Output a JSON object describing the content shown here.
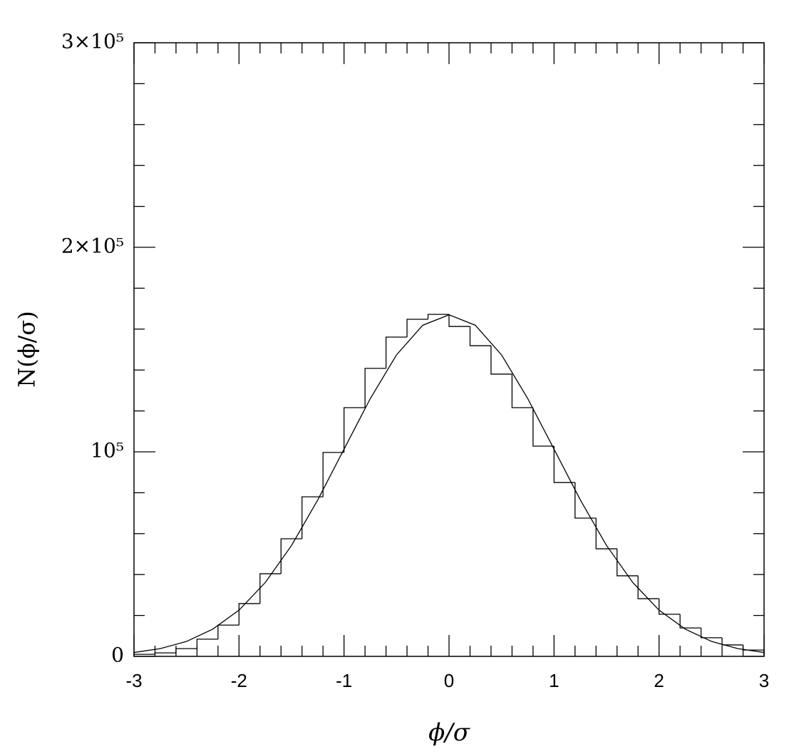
{
  "chart_data": {
    "type": "histogram",
    "xlabel": "ϕ/σ",
    "ylabel": "N(ϕ/σ)",
    "bins": [
      -3,
      -2.8,
      -2.6,
      -2.4,
      -2.2,
      -2,
      -1.8,
      -1.6,
      -1.4,
      -1.2,
      -1,
      -0.8,
      -0.6,
      -0.4,
      -0.2,
      0,
      0.2,
      0.4,
      0.6,
      0.8,
      1,
      1.2,
      1.4,
      1.6,
      1.8,
      2,
      2.2,
      2.4,
      2.6,
      2.8,
      3
    ],
    "values": [
      1000,
      1700,
      3800,
      8400,
      15300,
      25800,
      40400,
      57500,
      78000,
      99700,
      121600,
      140800,
      156100,
      164800,
      167200,
      161300,
      151900,
      138000,
      121600,
      102800,
      85000,
      67600,
      52600,
      39400,
      28200,
      20600,
      13900,
      9100,
      5600,
      3100
    ],
    "color": "#000000",
    "curve": {
      "x": [
        -3,
        -2.75,
        -2.5,
        -2.25,
        -2,
        -1.75,
        -1.5,
        -1.25,
        -1,
        -0.75,
        -0.5,
        -0.25,
        0,
        0.25,
        0.5,
        0.75,
        1,
        1.25,
        1.5,
        1.75,
        2,
        2.25,
        2.5,
        2.75,
        3
      ],
      "values": [
        1900,
        3800,
        7300,
        13300,
        22600,
        36100,
        54200,
        76500,
        101300,
        126000,
        147400,
        161900,
        167000,
        161900,
        147400,
        126000,
        101300,
        76500,
        54200,
        36100,
        22600,
        13300,
        7300,
        3800,
        1900
      ],
      "color": "#000000"
    },
    "xlim": [
      -3,
      3
    ],
    "xticks": [
      -3,
      -2,
      -1,
      0,
      1,
      2,
      3
    ],
    "ylim": [
      0,
      300000
    ],
    "yticks": [
      0,
      {
        "value": 100000,
        "label": "10⁵"
      },
      {
        "value": 200000,
        "label": "2×10⁵"
      },
      {
        "value": 300000,
        "label": "3×10⁵"
      }
    ]
  }
}
